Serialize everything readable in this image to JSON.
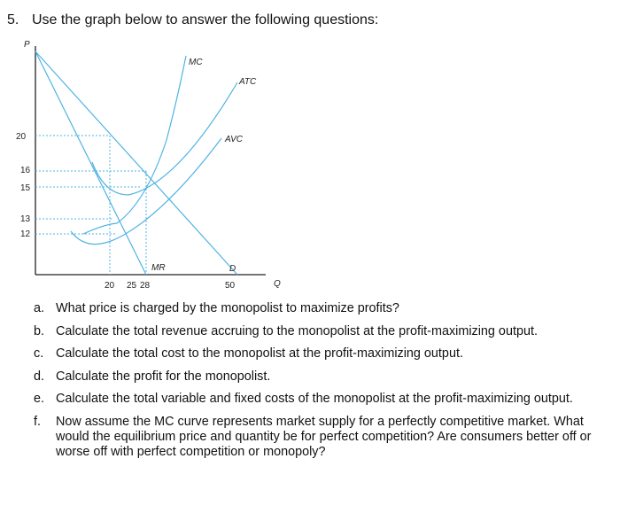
{
  "question": {
    "number": "5.",
    "prompt": "Use the graph below to answer the following questions:"
  },
  "graph": {
    "y_axis_label": "P",
    "x_axis_label": "Q",
    "y_ticks": [
      "20",
      "16",
      "15",
      "13",
      "12"
    ],
    "x_ticks": [
      "20",
      "25",
      "28",
      "50"
    ],
    "curve_labels": {
      "mc": "MC",
      "atc": "ATC",
      "avc": "AVC",
      "mr": "MR",
      "d": "D"
    },
    "colors": {
      "curves": "#4fb3e3",
      "guides": "#4fb3e3",
      "axes": "#222222"
    }
  },
  "parts": [
    {
      "letter": "a.",
      "text": "What price is charged by the monopolist to maximize profits?"
    },
    {
      "letter": "b.",
      "text": "Calculate the total revenue accruing to the monopolist at the profit-maximizing output."
    },
    {
      "letter": "c.",
      "text": "Calculate the total cost to the monopolist at the profit-maximizing output."
    },
    {
      "letter": "d.",
      "text": "Calculate the profit for the monopolist."
    },
    {
      "letter": "e.",
      "text": "Calculate the total variable and fixed costs of the monopolist at the profit-maximizing output."
    },
    {
      "letter": "f.",
      "text": "Now assume the MC curve represents market supply for a perfectly competitive market. What would the equilibrium price and quantity be for perfect competition? Are consumers better off or worse off with perfect competition or monopoly?"
    }
  ]
}
